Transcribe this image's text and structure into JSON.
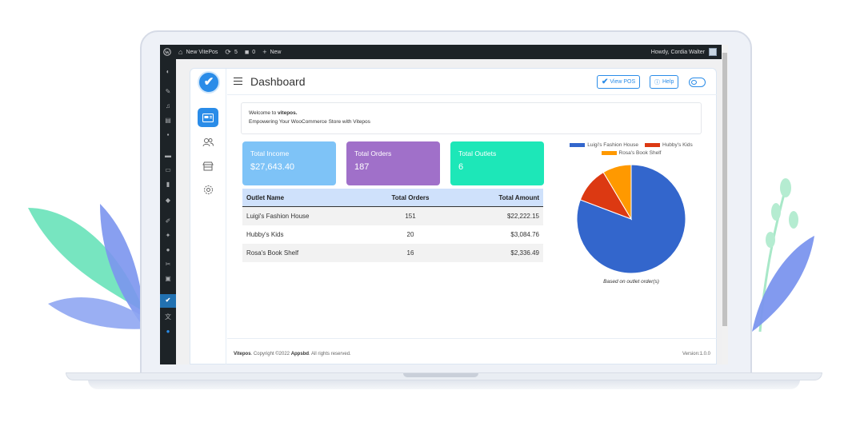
{
  "adminbar": {
    "site_name": "New VitePos",
    "updates_count": "5",
    "comments_count": "0",
    "new_label": "New",
    "howdy": "Howdy, Cordia Walter"
  },
  "header": {
    "title": "Dashboard",
    "view_pos": "View POS",
    "help": "Help"
  },
  "welcome": {
    "prefix": "Welcome to",
    "brand": "vitepos.",
    "tagline": "Empowering Your WooCommerce Store with Vitepos"
  },
  "cards": [
    {
      "title": "Total Income",
      "value": "$27,643.40",
      "color": "#7ec3f7"
    },
    {
      "title": "Total Orders",
      "value": "187",
      "color": "#a070c9"
    },
    {
      "title": "Total Outlets",
      "value": "6",
      "color": "#1de7b8"
    }
  ],
  "table": {
    "headers": [
      "Outlet Name",
      "Total Orders",
      "Total Amount"
    ],
    "rows": [
      [
        "Luigi's Fashion House",
        "151",
        "$22,222.15"
      ],
      [
        "Hubby's Kids",
        "20",
        "$3,084.76"
      ],
      [
        "Rosa's Book Shelf",
        "16",
        "$2,336.49"
      ]
    ]
  },
  "chart_data": {
    "type": "pie",
    "labels": [
      "Luigi's Fashion House",
      "Hubby's Kids",
      "Rosa's Book Shelf"
    ],
    "values": [
      151,
      20,
      16
    ],
    "colors": [
      "#3366cc",
      "#dc3912",
      "#ff9900"
    ],
    "legend": "top",
    "caption": "Based on outlet order(s)"
  },
  "footer": {
    "brand": "Vitepos",
    "copyright": ". Copyright ©2022",
    "company": "Appsbd",
    "rights": ". All rights reserved.",
    "version": "Version:1.0.0"
  },
  "colors": {
    "accent": "#2a8ce8",
    "wp_admin": "#1d2327"
  }
}
